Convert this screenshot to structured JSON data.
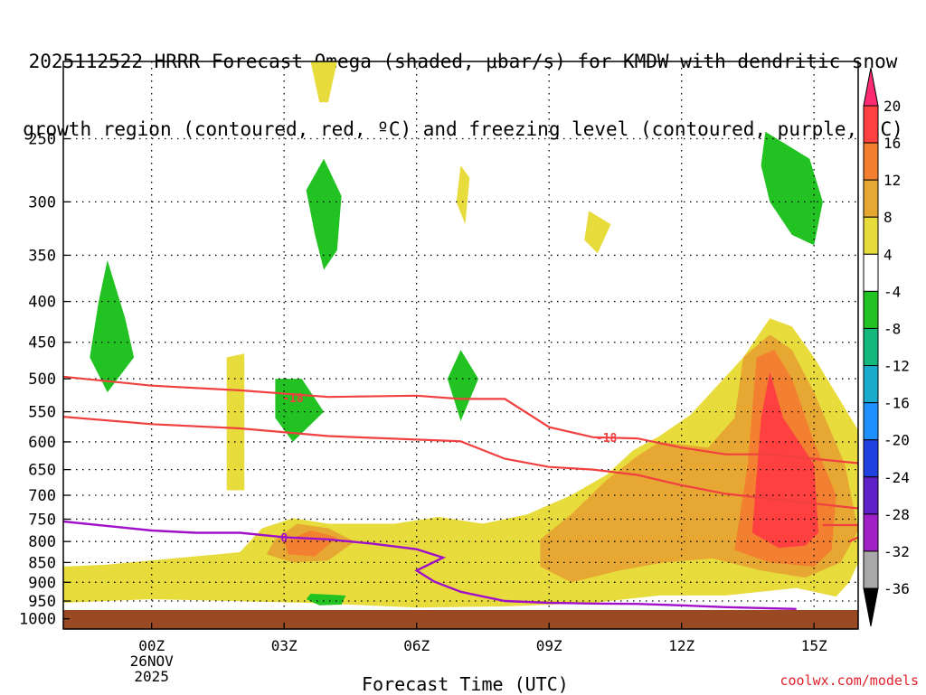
{
  "title": {
    "line1": "2025112522 HRRR Forecast Omega (shaded, μbar/s) for KMDW with dendritic snow",
    "line2": "growth region (contoured, red, ºC) and freezing level (contoured, purple, ºC)"
  },
  "credit": "coolwx.com/models",
  "chart_data": {
    "type": "time-height contour",
    "xlabel": "Forecast Time (UTC)",
    "ylabel": "",
    "x_ticks": [
      {
        "hour": 0,
        "label": "00Z",
        "sub1": "26NOV",
        "sub2": "2025"
      },
      {
        "hour": 3,
        "label": "03Z"
      },
      {
        "hour": 6,
        "label": "06Z"
      },
      {
        "hour": 9,
        "label": "09Z"
      },
      {
        "hour": 12,
        "label": "12Z"
      },
      {
        "hour": 15,
        "label": "15Z"
      }
    ],
    "xlim": [
      -2,
      16
    ],
    "ylim_hPa": [
      1030,
      200
    ],
    "y_ticks": [
      250,
      300,
      350,
      400,
      450,
      500,
      550,
      600,
      650,
      700,
      750,
      800,
      850,
      900,
      950,
      1000
    ],
    "surface_hPa": 975,
    "colorbar": {
      "unit": "μbar/s",
      "labels": [
        "20",
        "16",
        "12",
        "8",
        "4",
        "-4",
        "-8",
        "-12",
        "-16",
        "-20",
        "-24",
        "-28",
        "-32",
        "-36"
      ],
      "colors": [
        "#ff2b72",
        "#ff4040",
        "#f28030",
        "#e6a832",
        "#e8dc3c",
        "#ffffff",
        "#21c221",
        "#14b87d",
        "#1aaccc",
        "#1e90ff",
        "#2040e0",
        "#6020c8",
        "#a020c8",
        "#a8a8a8",
        "#000000"
      ]
    },
    "omega_regions": [
      {
        "level": "4-8",
        "color": "#e8dc3c",
        "points": [
          [
            -2,
            860
          ],
          [
            -1,
            855
          ],
          [
            2,
            825
          ],
          [
            2.5,
            770
          ],
          [
            3.2,
            748
          ],
          [
            4,
            760
          ],
          [
            5.5,
            760
          ],
          [
            6.5,
            745
          ],
          [
            7.5,
            760
          ],
          [
            8.5,
            740
          ],
          [
            9.5,
            700
          ],
          [
            10.3,
            660
          ],
          [
            10.9,
            615
          ],
          [
            11.5,
            590
          ],
          [
            12.2,
            555
          ],
          [
            13.4,
            470
          ],
          [
            14,
            420
          ],
          [
            14.5,
            430
          ],
          [
            15,
            470
          ],
          [
            16,
            580
          ],
          [
            16,
            850
          ],
          [
            15.8,
            900
          ],
          [
            15.5,
            938
          ],
          [
            14.6,
            915
          ],
          [
            13,
            935
          ],
          [
            11.5,
            935
          ],
          [
            10,
            955
          ],
          [
            8,
            965
          ],
          [
            6,
            968
          ],
          [
            3.5,
            955
          ],
          [
            0,
            945
          ],
          [
            -2,
            955
          ]
        ]
      },
      {
        "level": "4-8",
        "color": "#e8dc3c",
        "points": [
          [
            1.7,
            470
          ],
          [
            2.1,
            465
          ],
          [
            2.1,
            690
          ],
          [
            1.7,
            690
          ]
        ]
      },
      {
        "level": "4-8",
        "color": "#e8dc3c",
        "points": [
          [
            3.6,
            200
          ],
          [
            4.2,
            200
          ],
          [
            4.0,
            225
          ],
          [
            3.8,
            225
          ]
        ]
      },
      {
        "level": "4-8",
        "color": "#e8dc3c",
        "points": [
          [
            7,
            270
          ],
          [
            7.2,
            280
          ],
          [
            7.1,
            320
          ],
          [
            6.9,
            300
          ]
        ]
      },
      {
        "level": "4-8",
        "color": "#e8dc3c",
        "points": [
          [
            9.9,
            308
          ],
          [
            10.4,
            320
          ],
          [
            10.1,
            348
          ],
          [
            9.8,
            335
          ]
        ]
      },
      {
        "level": "8-12",
        "color": "#e6a832",
        "points": [
          [
            2.8,
            795
          ],
          [
            3.3,
            760
          ],
          [
            4,
            770
          ],
          [
            4.6,
            800
          ],
          [
            4,
            845
          ],
          [
            3.2,
            850
          ],
          [
            2.6,
            830
          ]
        ]
      },
      {
        "level": "8-12",
        "color": "#e6a832",
        "points": [
          [
            8.8,
            795
          ],
          [
            9.5,
            740
          ],
          [
            10.3,
            670
          ],
          [
            11,
            625
          ],
          [
            11.5,
            600
          ],
          [
            12.6,
            610
          ],
          [
            13.2,
            560
          ],
          [
            13.4,
            470
          ],
          [
            14,
            440
          ],
          [
            14.5,
            460
          ],
          [
            15,
            520
          ],
          [
            15.7,
            640
          ],
          [
            16,
            775
          ],
          [
            15.6,
            850
          ],
          [
            14.8,
            888
          ],
          [
            13.8,
            870
          ],
          [
            12.7,
            840
          ],
          [
            11.6,
            850
          ],
          [
            10.6,
            870
          ],
          [
            9.5,
            900
          ],
          [
            8.8,
            860
          ]
        ]
      },
      {
        "level": "12-16",
        "color": "#f28030",
        "points": [
          [
            3,
            800
          ],
          [
            3.6,
            775
          ],
          [
            4.2,
            790
          ],
          [
            3.7,
            835
          ],
          [
            3.1,
            830
          ]
        ]
      },
      {
        "level": "12-16",
        "color": "#f28030",
        "points": [
          [
            13.2,
            820
          ],
          [
            13.5,
            640
          ],
          [
            13.7,
            470
          ],
          [
            14.1,
            460
          ],
          [
            14.5,
            500
          ],
          [
            15,
            600
          ],
          [
            15.5,
            700
          ],
          [
            15.4,
            820
          ],
          [
            15,
            860
          ],
          [
            14,
            850
          ]
        ]
      },
      {
        "level": "16-20",
        "color": "#ff4040",
        "points": [
          [
            13.6,
            780
          ],
          [
            13.8,
            560
          ],
          [
            14,
            490
          ],
          [
            14.3,
            560
          ],
          [
            15,
            640
          ],
          [
            15.1,
            780
          ],
          [
            14.8,
            810
          ],
          [
            14.2,
            815
          ]
        ]
      },
      {
        "level": "-4 to -8",
        "color": "#21c221",
        "points": [
          [
            -1,
            355
          ],
          [
            -0.6,
            420
          ],
          [
            -0.4,
            470
          ],
          [
            -1,
            520
          ],
          [
            -1.4,
            470
          ],
          [
            -1.2,
            400
          ]
        ]
      },
      {
        "level": "-4 to -8",
        "color": "#21c221",
        "points": [
          [
            3.9,
            265
          ],
          [
            4.3,
            295
          ],
          [
            4.2,
            345
          ],
          [
            3.9,
            365
          ],
          [
            3.7,
            330
          ],
          [
            3.5,
            290
          ]
        ]
      },
      {
        "level": "-4 to -8",
        "color": "#21c221",
        "points": [
          [
            2.8,
            500
          ],
          [
            3.4,
            500
          ],
          [
            3.9,
            550
          ],
          [
            3.2,
            600
          ],
          [
            2.8,
            560
          ]
        ]
      },
      {
        "level": "-4 to -8",
        "color": "#21c221",
        "points": [
          [
            7,
            460
          ],
          [
            7.4,
            500
          ],
          [
            7,
            565
          ],
          [
            6.7,
            500
          ]
        ]
      },
      {
        "level": "-4 to -8",
        "color": "#21c221",
        "points": [
          [
            3.6,
            930
          ],
          [
            4.4,
            935
          ],
          [
            4.3,
            960
          ],
          [
            3.8,
            962
          ],
          [
            3.5,
            945
          ]
        ]
      },
      {
        "level": "-4 to -8",
        "color": "#21c221",
        "points": [
          [
            13.9,
            245
          ],
          [
            14.9,
            265
          ],
          [
            15.2,
            300
          ],
          [
            15,
            340
          ],
          [
            14.5,
            330
          ],
          [
            14,
            300
          ],
          [
            13.8,
            270
          ]
        ]
      }
    ],
    "isotherms": [
      {
        "value": -18,
        "label": "-18",
        "color": "#f04040",
        "upper": [
          [
            -2,
            497
          ],
          [
            0,
            510
          ],
          [
            2,
            517
          ],
          [
            4,
            527
          ],
          [
            6,
            525
          ],
          [
            7,
            530
          ],
          [
            8,
            530
          ],
          [
            9,
            575
          ],
          [
            10,
            592
          ],
          [
            11,
            594
          ],
          [
            12,
            610
          ],
          [
            13,
            622
          ],
          [
            14,
            622
          ],
          [
            15,
            630
          ],
          [
            16,
            638
          ]
        ],
        "lower": [
          [
            -2,
            558
          ],
          [
            0,
            570
          ],
          [
            2,
            577
          ],
          [
            4,
            590
          ],
          [
            6,
            596
          ],
          [
            7,
            599
          ],
          [
            8,
            630
          ],
          [
            9,
            645
          ],
          [
            10,
            650
          ],
          [
            11,
            660
          ],
          [
            12,
            680
          ],
          [
            13,
            697
          ],
          [
            14,
            707
          ],
          [
            15,
            717
          ],
          [
            16,
            727
          ]
        ]
      },
      {
        "value": -18,
        "label": "-18",
        "color": "#f04040",
        "upper": [
          [
            16,
            763
          ],
          [
            15.2,
            763
          ]
        ],
        "lower": [
          [
            16,
            790
          ],
          [
            15.8,
            800
          ]
        ]
      }
    ],
    "freezing_level": {
      "value": 0,
      "label": "0",
      "color": "#a010c8",
      "points": [
        [
          -2,
          755
        ],
        [
          0,
          775
        ],
        [
          1,
          780
        ],
        [
          2,
          780
        ],
        [
          3,
          790
        ],
        [
          4,
          795
        ],
        [
          5,
          805
        ],
        [
          6,
          818
        ],
        [
          6.6,
          838
        ],
        [
          6,
          870
        ],
        [
          6.4,
          898
        ],
        [
          7,
          925
        ],
        [
          8,
          950
        ],
        [
          9,
          955
        ],
        [
          10,
          957
        ],
        [
          11,
          958
        ],
        [
          12,
          962
        ],
        [
          13,
          967
        ],
        [
          14.6,
          972
        ]
      ]
    }
  }
}
